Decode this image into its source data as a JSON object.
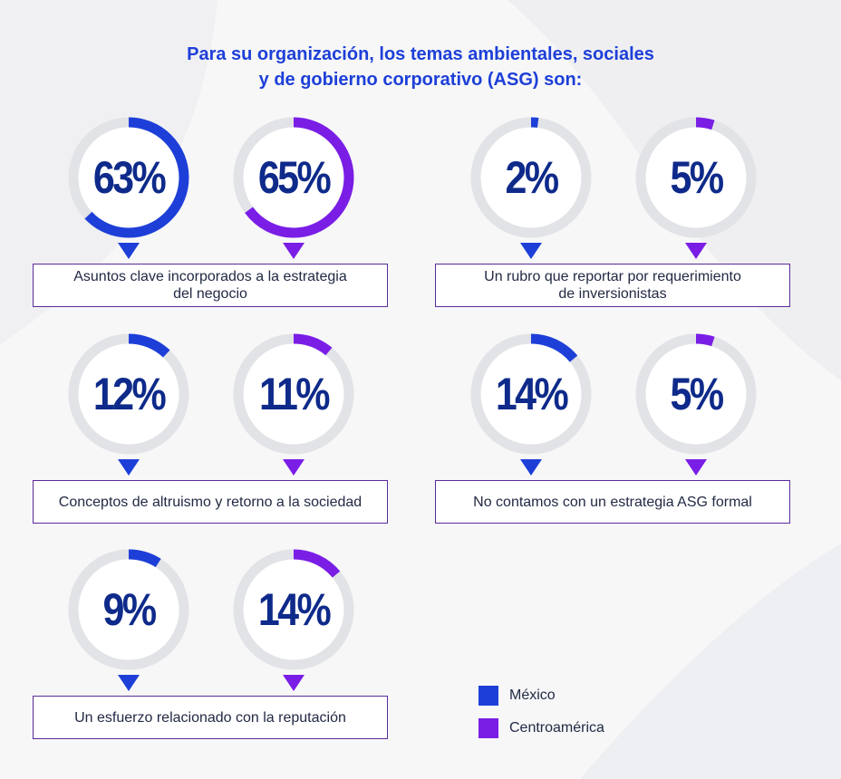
{
  "title": {
    "line1": "Para su organización, los temas ambientales, sociales",
    "line2": "y de gobierno corporativo (ASG) son:"
  },
  "colors": {
    "mexico": "#1d3fd8",
    "centroamerica": "#7a1ee6",
    "track": "#e2e3e6"
  },
  "chart_data": {
    "type": "donut",
    "series": [
      {
        "name": "México",
        "color": "#1d3fd8"
      },
      {
        "name": "Centroamérica",
        "color": "#7a1ee6"
      }
    ],
    "categories": [
      {
        "label": "Asuntos clave incorporados a la estrategia del negocio",
        "label_lines": [
          "Asuntos clave incorporados a la estrategia",
          "del negocio"
        ],
        "values": [
          63,
          65
        ],
        "display": [
          "63%",
          "65%"
        ]
      },
      {
        "label": "Un rubro que reportar por requerimiento de inversionistas",
        "label_lines": [
          "Un rubro que reportar por requerimiento",
          "de inversionistas"
        ],
        "values": [
          2,
          5
        ],
        "display": [
          "2%",
          "5%"
        ]
      },
      {
        "label": "Conceptos de altruismo y retorno a la sociedad",
        "label_lines": [
          "Conceptos de altruismo y retorno a la sociedad"
        ],
        "values": [
          12,
          11
        ],
        "display": [
          "12%",
          "11%"
        ]
      },
      {
        "label": "No contamos con un estrategia ASG formal",
        "label_lines": [
          "No contamos con un estrategia ASG formal"
        ],
        "values": [
          14,
          5
        ],
        "display": [
          "14%",
          "5%"
        ]
      },
      {
        "label": "Un esfuerzo relacionado con la reputación",
        "label_lines": [
          "Un esfuerzo relacionado con la reputación"
        ],
        "values": [
          9,
          14
        ],
        "display": [
          "9%",
          "14%"
        ]
      }
    ]
  },
  "legend": [
    {
      "label": "México",
      "color": "#1d3fd8"
    },
    {
      "label": "Centroamérica",
      "color": "#7a1ee6"
    }
  ]
}
